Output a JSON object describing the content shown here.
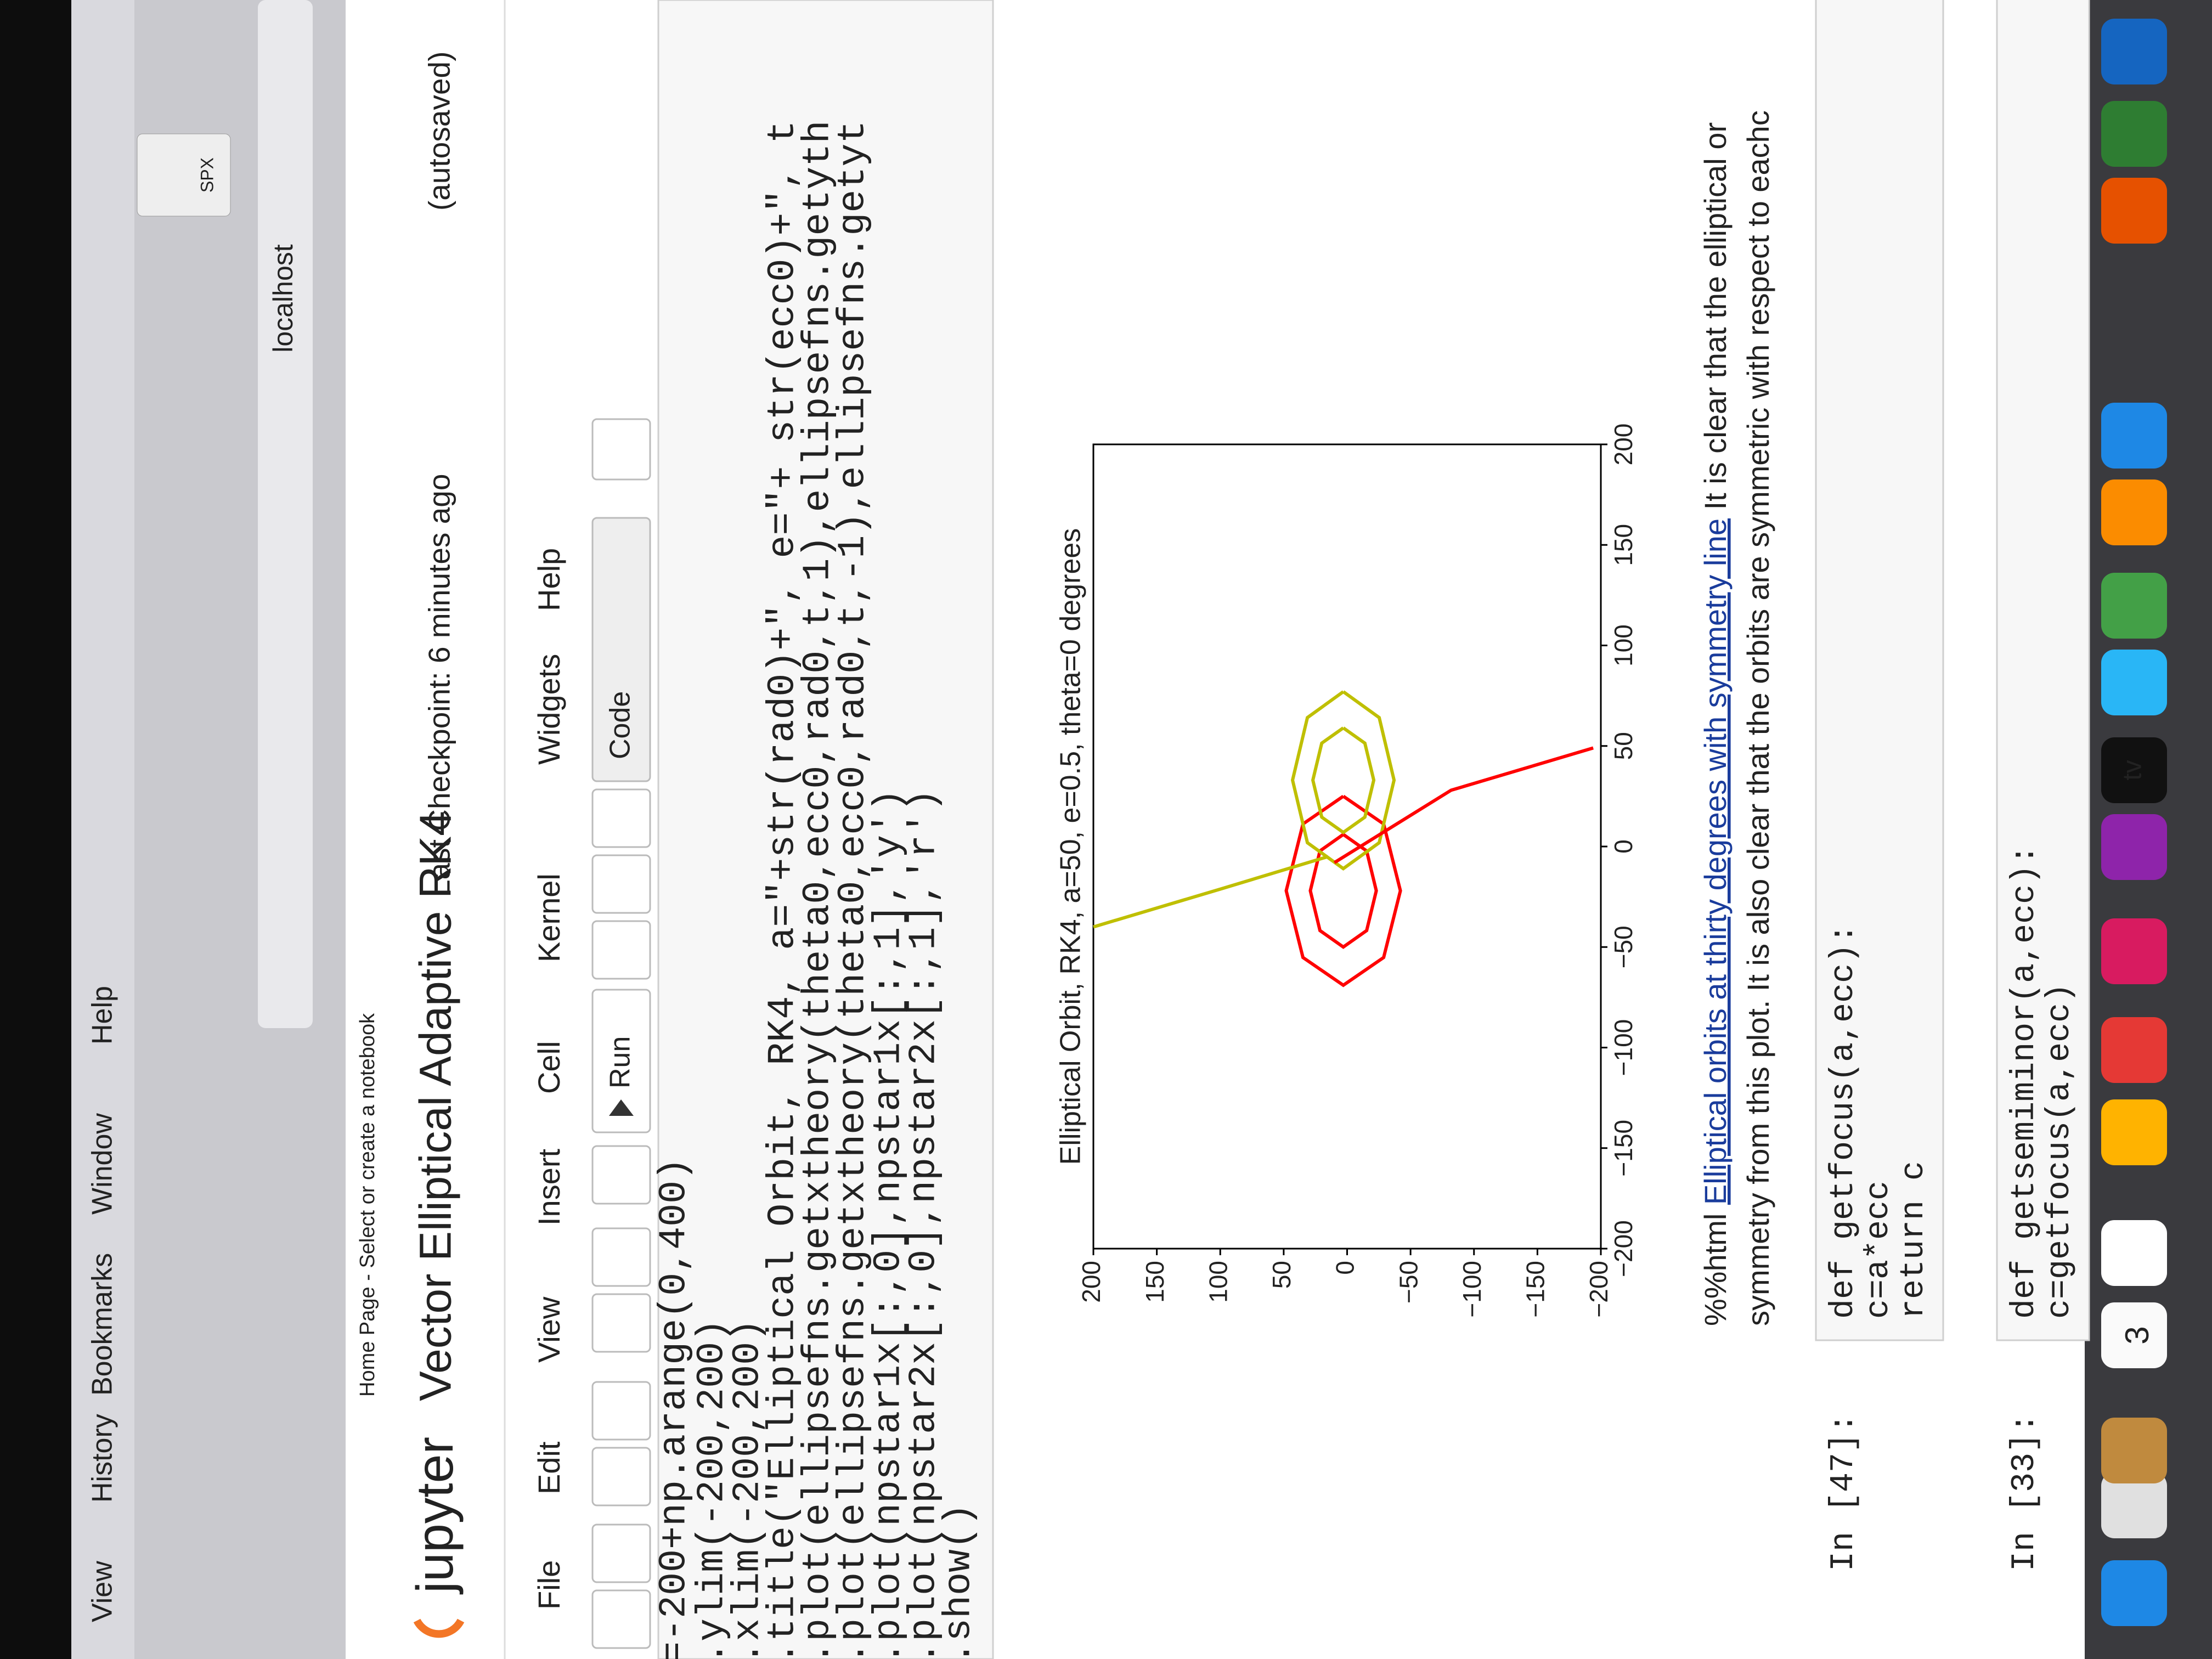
{
  "menu_bar": {
    "items": [
      "View",
      "History",
      "Bookmarks",
      "Window",
      "Help"
    ]
  },
  "browser": {
    "address": "localhost",
    "bookmark": "SPX"
  },
  "header": {
    "breadcrumb": "Home Page - Select or create a notebook",
    "logo": "jupyter",
    "notebook_title": "Vector Elliptical Adaptive RK4",
    "checkpoint": "Last Checkpoint: 6 minutes ago",
    "autosave": "(autosaved)"
  },
  "menu": [
    "File",
    "Edit",
    "View",
    "Insert",
    "Cell",
    "Kernel",
    "Widgets",
    "Help"
  ],
  "toolbar": {
    "run": "Run",
    "cell_type": "Code"
  },
  "code_cell": {
    "lines": [
      "=-200+np.arange(0,400)",
      ".ylim(-200,200)",
      ".xlim(-200,200)",
      ".title(\"Elliptical Orbit, RK4, a=\"+str(rad0)+\", e=\"+ str(ecc0)+\", t",
      ".plot(ellipsefns.getxtheory(theta0,ecc0,rad0,t,1),ellipsefns.getyth",
      ".plot(ellipsefns.getxtheory(theta0,ecc0,rad0,t,-1),ellipsefns.getyt",
      ".plot(npstar1x[:,0],npstar1x[:,1],'y')",
      ".plot(npstar2x[:,0],npstar2x[:,1],'r')",
      ".show()"
    ]
  },
  "chart_data": {
    "type": "line",
    "title": "Elliptical Orbit, RK4, a=50, e=0.5, theta=0 degrees",
    "xlim": [
      -200,
      200
    ],
    "ylim": [
      -200,
      200
    ],
    "xticks": [
      {
        "value": -200,
        "label": "−200"
      },
      {
        "value": -150,
        "label": "−150"
      },
      {
        "value": -100,
        "label": "−100"
      },
      {
        "value": -50,
        "label": "−50"
      },
      0,
      50,
      100,
      150,
      200
    ],
    "yticks": [
      {
        "value": -200,
        "label": "−200"
      },
      {
        "value": -150,
        "label": "−150"
      },
      {
        "value": -100,
        "label": "−100"
      },
      {
        "value": -50,
        "label": "−50"
      },
      0,
      50,
      100,
      150,
      200
    ],
    "series": [
      {
        "color": "#ff0000",
        "x": [
          25,
          11.2,
          -22,
          -55.2,
          -69,
          -55.2,
          -22,
          11.2,
          25
        ],
        "values": [
          3,
          34.8,
          48,
          34.8,
          3,
          -28.8,
          -42,
          -28.8,
          3
        ]
      },
      {
        "color": "#ff0000",
        "x": [
          6,
          -2.2,
          -22,
          -41.8,
          -50,
          -41.8,
          -22,
          -2.2,
          6
        ],
        "values": [
          3,
          21.4,
          29,
          21.4,
          3,
          -15.4,
          -23,
          -15.4,
          3
        ]
      },
      {
        "color": "#bfbf00",
        "x": [
          77,
          64.1,
          33,
          1.9,
          -11,
          1.9,
          33,
          64.1,
          77
        ],
        "values": [
          3,
          31.3,
          43,
          31.3,
          3,
          -25.3,
          -37,
          -25.3,
          3
        ]
      },
      {
        "color": "#bfbf00",
        "x": [
          59,
          51.4,
          33,
          14.6,
          7,
          14.6,
          33,
          51.4,
          59
        ],
        "values": [
          3,
          20,
          27,
          20,
          3,
          -14,
          -21,
          -14,
          3
        ]
      },
      {
        "color": "#bfbf00",
        "x": [
          -40,
          -21,
          -5
        ],
        "values": [
          200,
          99,
          15
        ]
      },
      {
        "color": "#ff0000",
        "x": [
          -8,
          28,
          49
        ],
        "values": [
          10,
          -82,
          -194
        ]
      }
    ]
  },
  "markdown_cell": {
    "prefix": "%%html ",
    "link": "Elliptical orbits at thirty degrees with symmetry line",
    "line1_rest": " It is clear that the elliptical or",
    "line2": "symmetry from this plot. It is also clear that the orbits are symmetric with respect to eachc"
  },
  "cells": [
    {
      "prompt": "In [47]:",
      "lines": [
        "def getfocus(a,ecc):",
        "    c=a*ecc",
        "    return c"
      ]
    },
    {
      "prompt": "In [33]:",
      "lines": [
        "def getsemiminor(a,ecc):",
        "    c=getfocus(a,ecc)"
      ]
    }
  ],
  "dock": {
    "calendar_day": "3",
    "tv": "tv"
  }
}
